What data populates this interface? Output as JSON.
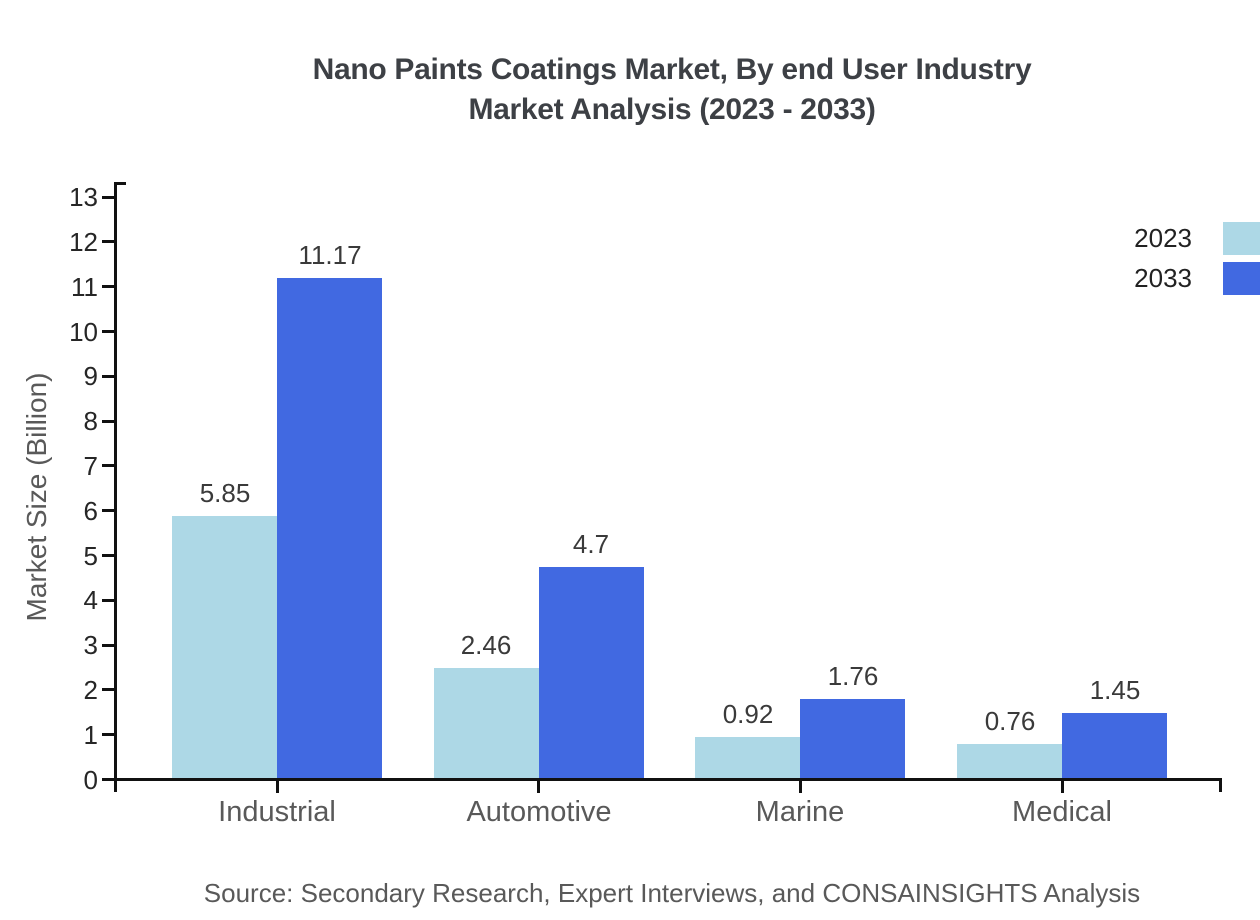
{
  "title": {
    "line1": "Nano Paints Coatings Market, By end User Industry",
    "line2": "Market Analysis (2023 - 2033)"
  },
  "y_axis_label": "Market Size (Billion)",
  "source": "Source: Secondary Research, Expert Interviews, and CONSAINSIGHTS Analysis",
  "legend": {
    "items": [
      {
        "label": "2023",
        "color": "#ADD8E6"
      },
      {
        "label": "2033",
        "color": "#4169E1"
      }
    ]
  },
  "chart_data": {
    "type": "bar",
    "title": "Nano Paints Coatings Market, By end User Industry Market Analysis (2023 - 2033)",
    "categories": [
      "Industrial",
      "Automotive",
      "Marine",
      "Medical"
    ],
    "series": [
      {
        "name": "2023",
        "color": "#ADD8E6",
        "values": [
          5.85,
          2.46,
          0.92,
          0.76
        ]
      },
      {
        "name": "2033",
        "color": "#4169E1",
        "values": [
          11.17,
          4.7,
          1.76,
          1.45
        ]
      }
    ],
    "xlabel": "",
    "ylabel": "Market Size (Billion)",
    "ylim": [
      0,
      13
    ],
    "ytick_interval": 1,
    "grid": false,
    "legend_position": "top-right",
    "value_labels": true
  }
}
